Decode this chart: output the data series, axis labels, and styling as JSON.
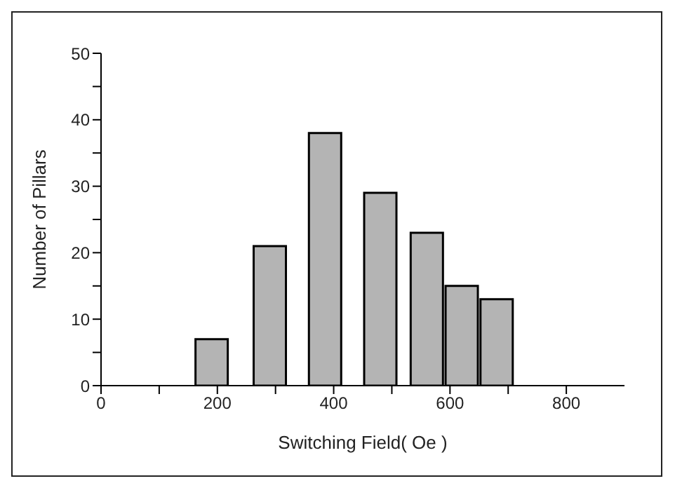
{
  "chart_data": {
    "type": "bar",
    "xlabel": "Switching Field( Oe )",
    "ylabel": "Number of Pillars",
    "x": [
      190,
      290,
      385,
      480,
      560,
      620,
      680
    ],
    "values": [
      7,
      21,
      38,
      29,
      23,
      15,
      13
    ],
    "color": "#b4b4b4",
    "xlim": [
      0,
      900
    ],
    "xticks": [
      0,
      {
        "value": 100,
        "label": null
      },
      200,
      {
        "value": 300,
        "label": null
      },
      400,
      {
        "value": 500,
        "label": null
      },
      600,
      {
        "value": 700,
        "label": null
      },
      800
    ],
    "ylim": [
      0,
      50
    ],
    "yticks": [
      0,
      {
        "value": 5,
        "label": null
      },
      10,
      {
        "value": 15,
        "label": null
      },
      20,
      {
        "value": 25,
        "label": null
      },
      30,
      {
        "value": 35,
        "label": null
      },
      40,
      {
        "value": 45,
        "label": null
      },
      50
    ],
    "grid": false,
    "legend": false
  }
}
